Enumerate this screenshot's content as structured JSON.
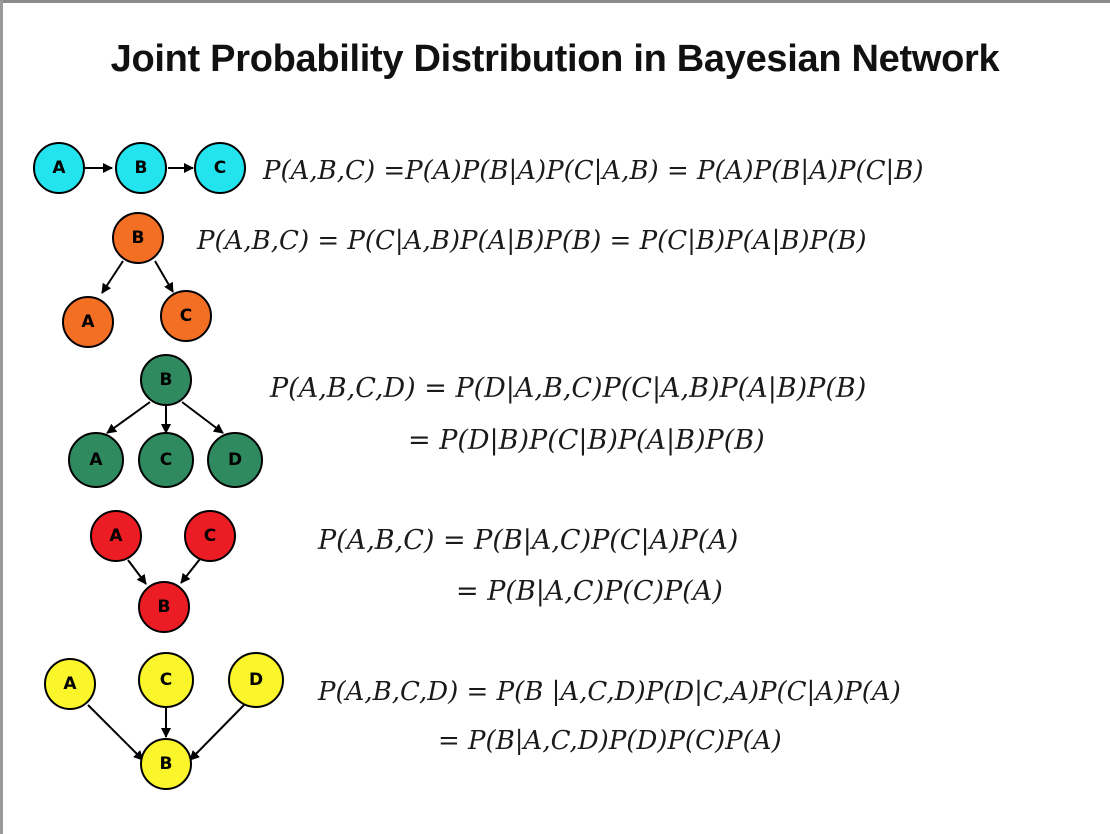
{
  "title": "Joint Probability Distribution in Bayesian Network",
  "colors": {
    "network1": "#22e3ee",
    "network2": "#f36f24",
    "network3": "#2f8a60",
    "network4": "#ec1c24",
    "network5": "#fbf52b"
  },
  "networks": [
    {
      "nodes": [
        "A",
        "B",
        "C"
      ],
      "edges": [
        [
          "A",
          "B"
        ],
        [
          "B",
          "C"
        ]
      ],
      "equations": [
        "P(A,B,C) =P(A)P(B|A)P(C|A,B) = P(A)P(B|A)P(C|B)"
      ]
    },
    {
      "nodes": [
        "B",
        "A",
        "C"
      ],
      "edges": [
        [
          "B",
          "A"
        ],
        [
          "B",
          "C"
        ]
      ],
      "equations": [
        "P(A,B,C) = P(C|A,B)P(A|B)P(B) = P(C|B)P(A|B)P(B)"
      ]
    },
    {
      "nodes": [
        "B",
        "A",
        "C",
        "D"
      ],
      "edges": [
        [
          "B",
          "A"
        ],
        [
          "B",
          "C"
        ],
        [
          "B",
          "D"
        ]
      ],
      "equations": [
        "P(A,B,C,D) = P(D|A,B,C)P(C|A,B)P(A|B)P(B)",
        "= P(D|B)P(C|B)P(A|B)P(B)"
      ]
    },
    {
      "nodes": [
        "A",
        "C",
        "B"
      ],
      "edges": [
        [
          "A",
          "B"
        ],
        [
          "C",
          "B"
        ]
      ],
      "equations": [
        "P(A,B,C) = P(B|A,C)P(C|A)P(A)",
        "=  P(B|A,C)P(C)P(A)"
      ]
    },
    {
      "nodes": [
        "A",
        "C",
        "D",
        "B"
      ],
      "edges": [
        [
          "A",
          "B"
        ],
        [
          "C",
          "B"
        ],
        [
          "D",
          "B"
        ]
      ],
      "equations": [
        "P(A,B,C,D) =  P(B |A,C,D)P(D|C,A)P(C|A)P(A)",
        "= P(B|A,C,D)P(D)P(C)P(A)"
      ]
    }
  ]
}
